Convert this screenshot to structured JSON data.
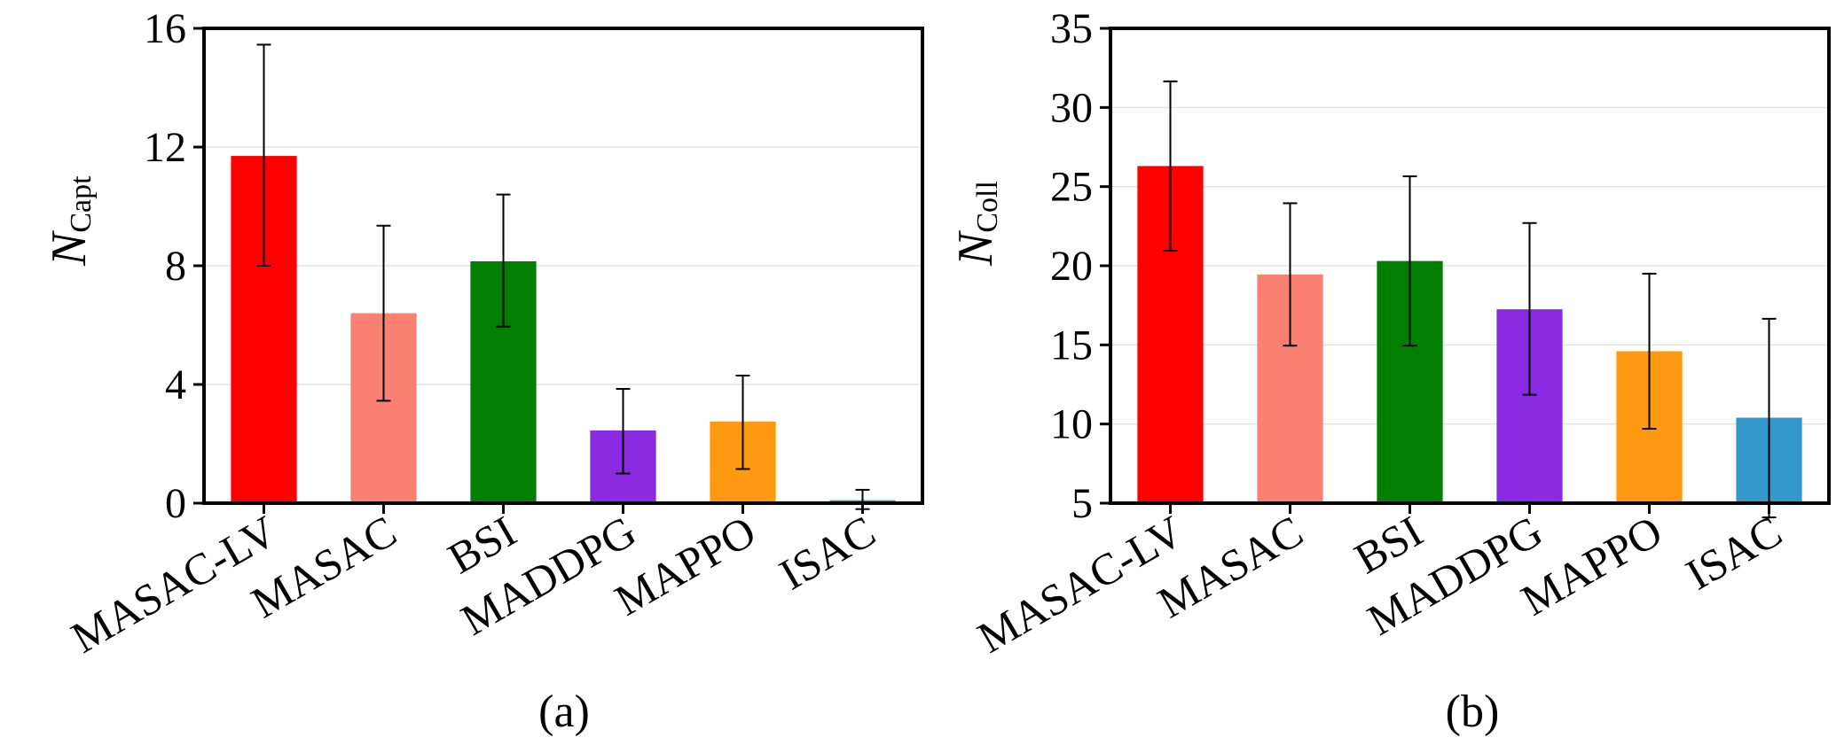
{
  "chart_data": [
    {
      "type": "bar",
      "panel_label": "(a)",
      "ylabel": "N",
      "ylabel_sub": "Capt",
      "categories": [
        "MASAC-LV",
        "MASAC",
        "BSI",
        "MADDPG",
        "MAPPO",
        "ISAC"
      ],
      "values": [
        11.7,
        6.4,
        8.15,
        2.45,
        2.75,
        0.1
      ],
      "error_low": [
        8.0,
        3.45,
        5.95,
        1.0,
        1.15,
        -0.2
      ],
      "error_high": [
        15.45,
        9.35,
        10.4,
        3.85,
        4.3,
        0.45
      ],
      "colors": [
        "#ff0000",
        "#fa8072",
        "#007f00",
        "#8a2be2",
        "#ff9912",
        "#3399cc"
      ],
      "ylim": [
        0,
        16
      ],
      "yticks": [
        "0",
        "4",
        "8",
        "12",
        "16"
      ],
      "ytick_values": [
        0,
        4,
        8,
        12,
        16
      ],
      "grid": true
    },
    {
      "type": "bar",
      "panel_label": "(b)",
      "ylabel": "N",
      "ylabel_sub": "Coll",
      "categories": [
        "MASAC-LV",
        "MASAC",
        "BSI",
        "MADDPG",
        "MAPPO",
        "ISAC"
      ],
      "values": [
        26.3,
        19.45,
        20.3,
        17.25,
        14.6,
        10.4
      ],
      "error_low": [
        20.95,
        14.95,
        14.95,
        11.85,
        9.7,
        4.1
      ],
      "error_high": [
        31.65,
        23.95,
        25.65,
        22.7,
        19.5,
        16.65
      ],
      "colors": [
        "#ff0000",
        "#fa8072",
        "#007f00",
        "#8a2be2",
        "#ff9912",
        "#3399cc"
      ],
      "ylim": [
        5,
        35
      ],
      "yticks": [
        "5",
        "10",
        "15",
        "20",
        "25",
        "30",
        "35"
      ],
      "ytick_values": [
        5,
        10,
        15,
        20,
        25,
        30,
        35
      ],
      "grid": true
    }
  ]
}
